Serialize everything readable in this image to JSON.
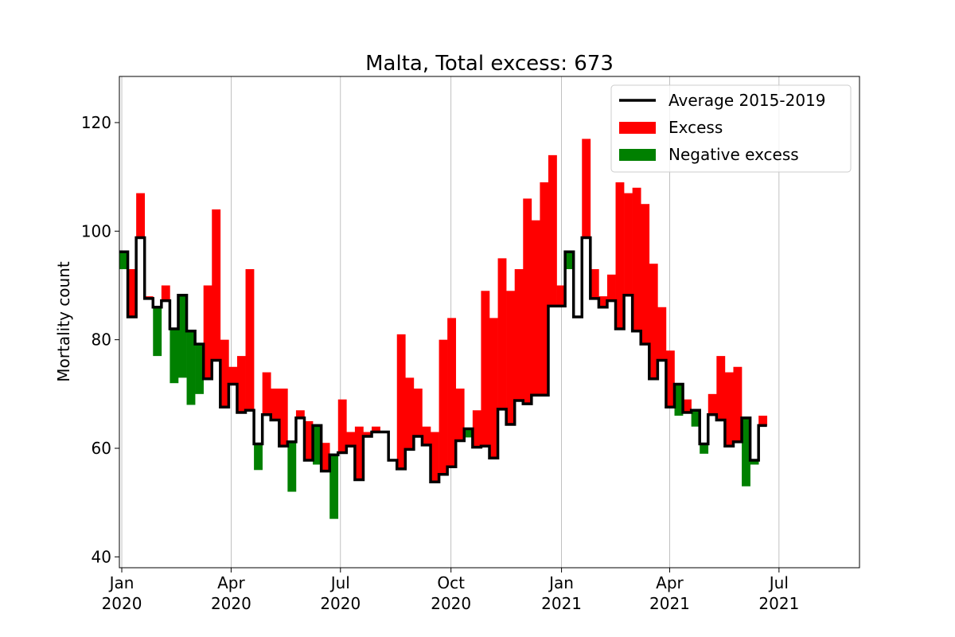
{
  "chart_data": {
    "type": "bar",
    "title": "Malta, Total excess: 673",
    "xlabel": "",
    "ylabel": "Mortality count",
    "ylim": [
      38,
      128.5
    ],
    "xlim": [
      "2019-12-30",
      "2021-09-06"
    ],
    "yticks": [
      40,
      60,
      80,
      100,
      120
    ],
    "xticks": [
      {
        "date": "2020-01-01",
        "label": [
          "Jan",
          "2020"
        ]
      },
      {
        "date": "2020-04-01",
        "label": [
          "Apr",
          "2020"
        ]
      },
      {
        "date": "2020-07-01",
        "label": [
          "Jul",
          "2020"
        ]
      },
      {
        "date": "2020-10-01",
        "label": [
          "Oct",
          "2020"
        ]
      },
      {
        "date": "2021-01-01",
        "label": [
          "Jan",
          "2021"
        ]
      },
      {
        "date": "2021-04-01",
        "label": [
          "Apr",
          "2021"
        ]
      },
      {
        "date": "2021-07-01",
        "label": [
          "Jul",
          "2021"
        ]
      }
    ],
    "grid": "vertical",
    "legend_position": "top-right",
    "legend": [
      {
        "label": "Average 2015-2019",
        "kind": "line",
        "color": "#000000"
      },
      {
        "label": "Excess",
        "kind": "patch",
        "color": "#ff0000"
      },
      {
        "label": "Negative excess",
        "kind": "patch",
        "color": "#008000"
      }
    ],
    "colors": {
      "average": "#000000",
      "excess": "#ff0000",
      "negative": "#008000"
    },
    "week_start": "2019-12-30",
    "series": [
      {
        "name": "Average 2015-2019",
        "values": [
          96.2,
          84.2,
          98.8,
          87.6,
          86.0,
          87.2,
          82.0,
          88.2,
          81.6,
          79.2,
          72.8,
          76.2,
          67.6,
          71.8,
          66.6,
          67.0,
          60.8,
          66.2,
          65.2,
          60.4,
          61.2,
          65.6,
          57.8,
          64.2,
          55.8,
          58.8,
          59.2,
          60.4,
          54.2,
          62.2,
          63.0,
          63.0,
          57.8,
          56.2,
          59.8,
          62.2,
          60.6,
          53.8,
          55.2,
          56.6,
          61.4,
          63.6,
          60.2,
          60.4,
          58.2,
          67.2,
          64.4,
          68.8,
          68.2,
          69.8,
          69.8,
          86.2,
          86.2,
          96.2,
          84.2,
          98.8,
          87.6,
          86.0,
          87.2,
          82.0,
          88.2,
          81.6,
          79.2,
          72.8,
          76.2,
          67.6,
          71.8,
          66.6,
          67.0,
          60.8,
          66.2,
          65.2,
          60.4,
          61.2,
          65.6,
          57.8,
          64.2
        ]
      },
      {
        "name": "Deaths",
        "values": [
          93,
          93,
          107,
          88,
          77,
          90,
          72,
          73,
          68,
          70,
          90,
          104,
          80,
          75,
          77,
          93,
          56,
          74,
          71,
          71,
          52,
          67,
          65,
          57,
          61,
          47,
          69,
          63,
          64,
          63,
          64,
          63,
          58,
          81,
          73,
          71,
          64,
          63,
          80,
          84,
          71,
          62,
          67,
          89,
          84,
          95,
          89,
          93,
          106,
          102,
          109,
          114,
          90,
          93,
          84,
          117,
          93,
          88,
          92,
          109,
          107,
          108,
          105,
          94,
          86,
          78,
          66,
          69,
          64,
          59,
          70,
          77,
          74,
          75,
          53,
          57,
          66
        ]
      }
    ]
  }
}
